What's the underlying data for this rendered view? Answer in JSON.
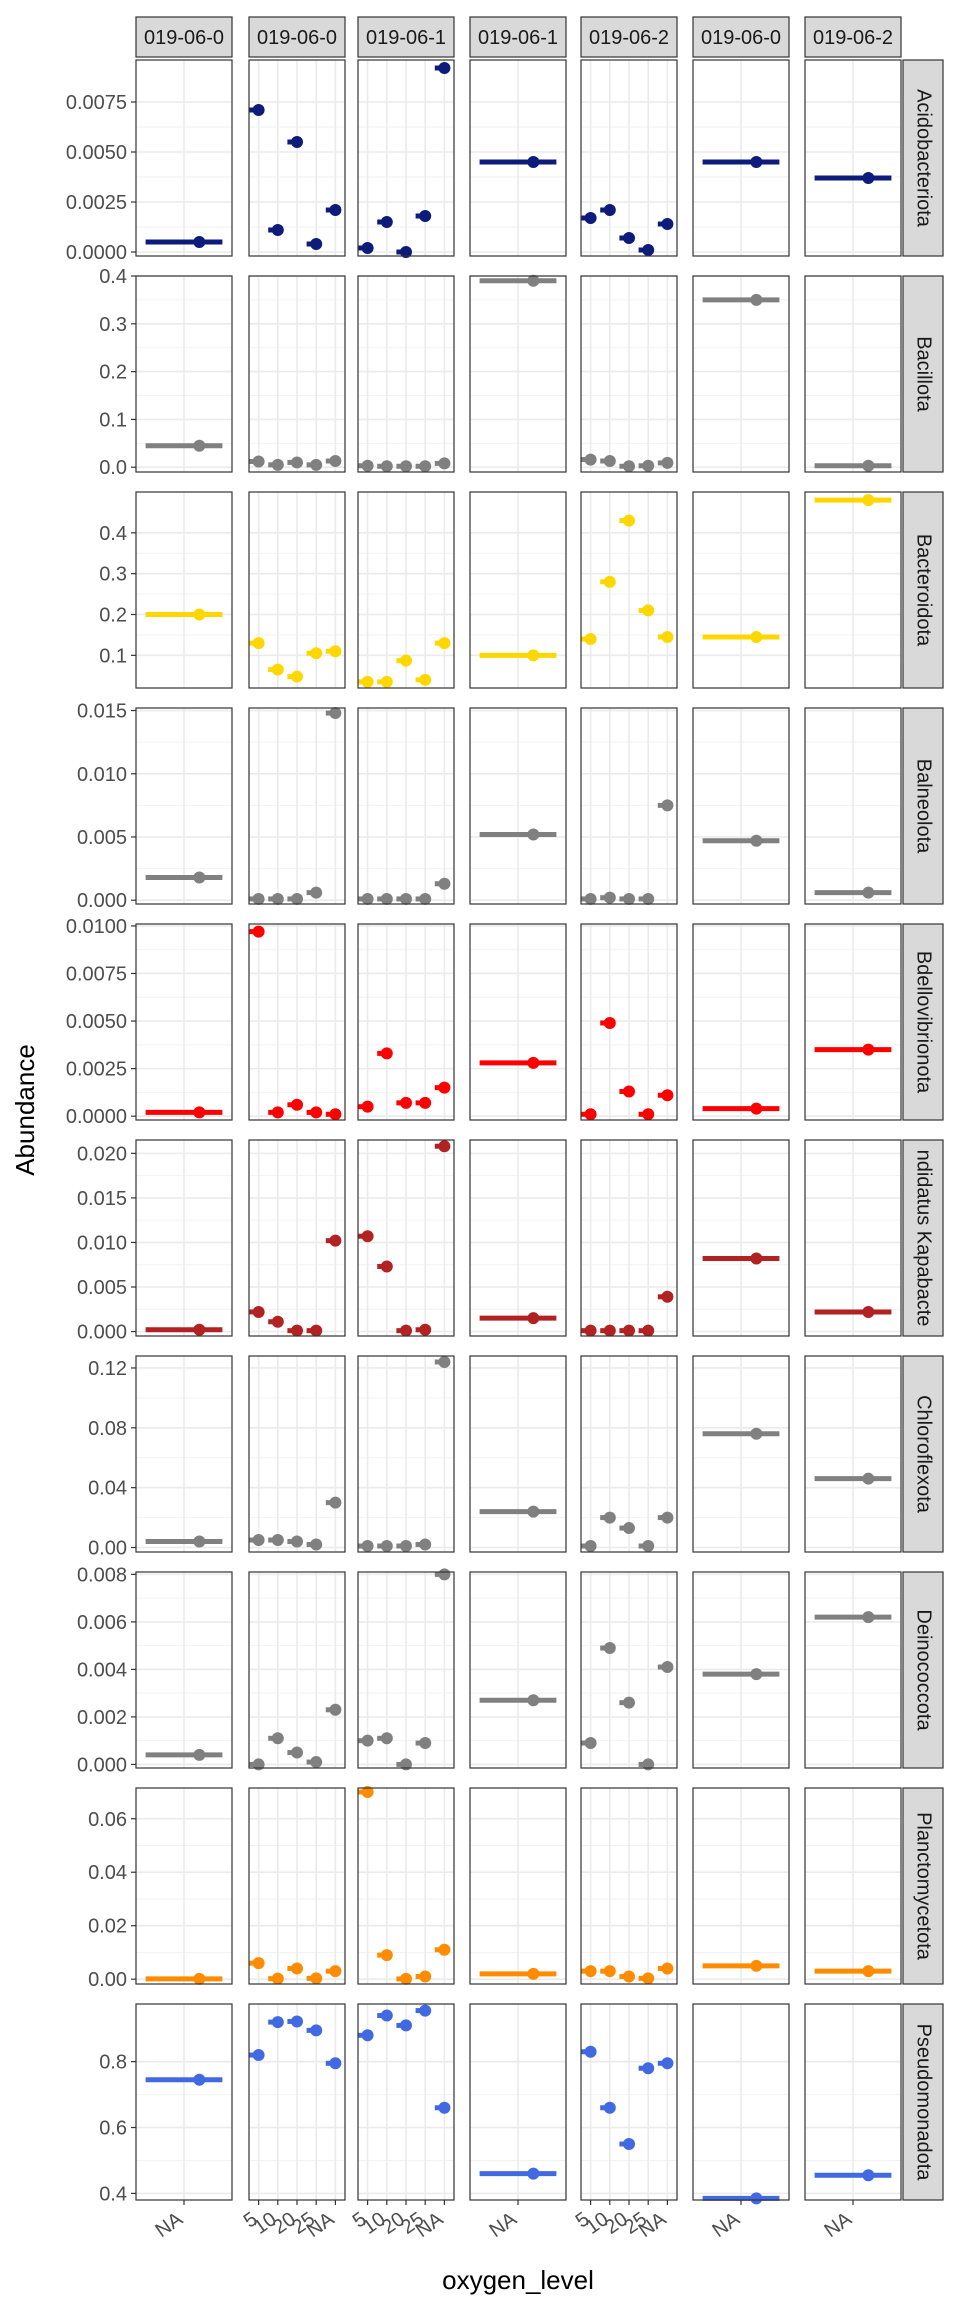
{
  "chart_data": {
    "type": "scatter",
    "xlabel": "oxygen_level",
    "ylabel": "Abundance",
    "columns": [
      "019-06-0",
      "019-06-0",
      "019-06-1",
      "019-06-1",
      "019-06-2",
      "019-06-0",
      "019-06-2"
    ],
    "column_x_ticks": [
      [
        "NA"
      ],
      [
        "5",
        "10",
        "20",
        "25",
        "NA"
      ],
      [
        "5",
        "10",
        "20",
        "25",
        "NA"
      ],
      [
        "NA"
      ],
      [
        "5",
        "10",
        "20",
        "25",
        "NA"
      ],
      [
        "NA"
      ],
      [
        "NA"
      ]
    ],
    "rows": [
      {
        "name": "Acidobacteriota",
        "color": "#0d1b7a",
        "ylim": [
          -0.0002,
          0.0096
        ],
        "ticks": [
          0,
          0.0025,
          0.005,
          0.0075
        ],
        "tick_labels": [
          "0.0000",
          "0.0025",
          "0.0050",
          "0.0075"
        ],
        "panels": [
          [
            0.0005
          ],
          [
            0.0071,
            0.0011,
            0.0055,
            0.0004,
            0.0021
          ],
          [
            0.0002,
            0.0015,
            0.0,
            0.0018,
            0.0092
          ],
          [
            0.0045
          ],
          [
            0.0017,
            0.0021,
            0.0007,
            0.0001,
            0.0014
          ],
          [
            0.0045
          ],
          [
            0.0037
          ]
        ]
      },
      {
        "name": "Bacillota",
        "color": "#808080",
        "ylim": [
          -0.01,
          0.4
        ],
        "ticks": [
          0,
          0.1,
          0.2,
          0.3,
          0.4
        ],
        "tick_labels": [
          "0.0",
          "0.1",
          "0.2",
          "0.3",
          "0.4"
        ],
        "panels": [
          [
            0.045
          ],
          [
            0.012,
            0.005,
            0.01,
            0.005,
            0.013
          ],
          [
            0.003,
            0.002,
            0.002,
            0.002,
            0.008
          ],
          [
            0.39
          ],
          [
            0.016,
            0.013,
            0.002,
            0.003,
            0.009
          ],
          [
            0.35
          ],
          [
            0.003
          ]
        ]
      },
      {
        "name": "Bacteroidota",
        "color": "#ffd700",
        "ylim": [
          0.02,
          0.5
        ],
        "ticks": [
          0.1,
          0.2,
          0.3,
          0.4
        ],
        "tick_labels": [
          "0.1",
          "0.2",
          "0.3",
          "0.4"
        ],
        "panels": [
          [
            0.2
          ],
          [
            0.13,
            0.065,
            0.048,
            0.105,
            0.11
          ],
          [
            0.035,
            0.035,
            0.087,
            0.04,
            0.13
          ],
          [
            0.1
          ],
          [
            0.14,
            0.28,
            0.43,
            0.21,
            0.145
          ],
          [
            0.145
          ],
          [
            0.48
          ]
        ]
      },
      {
        "name": "Balneolota",
        "color": "#808080",
        "ylim": [
          -0.0003,
          0.0152
        ],
        "ticks": [
          0,
          0.005,
          0.01,
          0.015
        ],
        "tick_labels": [
          "0.000",
          "0.005",
          "0.010",
          "0.015"
        ],
        "panels": [
          [
            0.0018
          ],
          [
            0.0001,
            0.0001,
            0.0001,
            0.0006,
            0.0148
          ],
          [
            0.0001,
            0.0001,
            0.0001,
            0.0001,
            0.0013
          ],
          [
            0.0052
          ],
          [
            0.0001,
            0.0002,
            0.0001,
            0.0001,
            0.0075
          ],
          [
            0.0047
          ],
          [
            0.0006
          ]
        ]
      },
      {
        "name": "Bdellovibrionota",
        "color": "#ff0000",
        "ylim": [
          -0.0002,
          0.0101
        ],
        "ticks": [
          0,
          0.0025,
          0.005,
          0.0075,
          0.01
        ],
        "tick_labels": [
          "0.0000",
          "0.0025",
          "0.0050",
          "0.0075",
          "0.0100"
        ],
        "panels": [
          [
            0.0002
          ],
          [
            0.0097,
            0.0002,
            0.0006,
            0.0002,
            0.0001
          ],
          [
            0.0005,
            0.0033,
            0.0007,
            0.0007,
            0.0015
          ],
          [
            0.0028
          ],
          [
            0.0001,
            0.0049,
            0.0013,
            0.0001,
            0.0011
          ],
          [
            0.0004
          ],
          [
            0.0035
          ]
        ]
      },
      {
        "name": "Candidatus Kapabacteria",
        "color": "#b22222",
        "ylim": [
          -0.0005,
          0.0215
        ],
        "ticks": [
          0,
          0.005,
          0.01,
          0.015,
          0.02
        ],
        "tick_labels": [
          "0.000",
          "0.005",
          "0.010",
          "0.015",
          "0.020"
        ],
        "panels": [
          [
            0.0002
          ],
          [
            0.0022,
            0.0011,
            0.0001,
            0.0001,
            0.0102
          ],
          [
            0.0107,
            0.0073,
            0.0001,
            0.0002,
            0.0208
          ],
          [
            0.0015
          ],
          [
            0.0001,
            0.0001,
            0.0001,
            0.0001,
            0.0039
          ],
          [
            0.0082
          ],
          [
            0.0022
          ]
        ]
      },
      {
        "name": "Chloroflexota",
        "color": "#808080",
        "ylim": [
          -0.003,
          0.128
        ],
        "ticks": [
          0,
          0.04,
          0.08,
          0.12
        ],
        "tick_labels": [
          "0.00",
          "0.04",
          "0.08",
          "0.12"
        ],
        "panels": [
          [
            0.004
          ],
          [
            0.005,
            0.005,
            0.004,
            0.002,
            0.03
          ],
          [
            0.001,
            0.001,
            0.001,
            0.002,
            0.124
          ],
          [
            0.024
          ],
          [
            0.001,
            0.02,
            0.013,
            0.001,
            0.02
          ],
          [
            0.076
          ],
          [
            0.046
          ]
        ]
      },
      {
        "name": "Deinococcota",
        "color": "#808080",
        "ylim": [
          -0.00015,
          0.0081
        ],
        "ticks": [
          0,
          0.002,
          0.004,
          0.006,
          0.008
        ],
        "tick_labels": [
          "0.000",
          "0.002",
          "0.004",
          "0.006",
          "0.008"
        ],
        "panels": [
          [
            0.0004
          ],
          [
            0.0,
            0.0011,
            0.0005,
            0.0001,
            0.0023
          ],
          [
            0.001,
            0.0011,
            0.0,
            0.0009,
            0.008
          ],
          [
            0.0027
          ],
          [
            0.0009,
            0.0049,
            0.0026,
            0.0,
            0.0041
          ],
          [
            0.0038
          ],
          [
            0.0062
          ]
        ]
      },
      {
        "name": "Planctomycetota",
        "color": "#ff8c00",
        "ylim": [
          -0.0018,
          0.0715
        ],
        "ticks": [
          0,
          0.02,
          0.04,
          0.06
        ],
        "tick_labels": [
          "0.00",
          "0.02",
          "0.04",
          "0.06"
        ],
        "panels": [
          [
            0.0001
          ],
          [
            0.006,
            0.0002,
            0.004,
            0.0003,
            0.003
          ],
          [
            0.07,
            0.009,
            0.0001,
            0.001,
            0.011
          ],
          [
            0.002
          ],
          [
            0.003,
            0.003,
            0.001,
            0.0003,
            0.004
          ],
          [
            0.005
          ],
          [
            0.003
          ]
        ]
      },
      {
        "name": "Pseudomonadota",
        "color": "#4169e1",
        "ylim": [
          0.38,
          0.975
        ],
        "ticks": [
          0.4,
          0.6,
          0.8
        ],
        "tick_labels": [
          "0.4",
          "0.6",
          "0.8"
        ],
        "panels": [
          [
            0.745
          ],
          [
            0.82,
            0.92,
            0.922,
            0.895,
            0.795
          ],
          [
            0.88,
            0.94,
            0.91,
            0.955,
            0.66
          ],
          [
            0.46
          ],
          [
            0.83,
            0.66,
            0.55,
            0.78,
            0.795
          ],
          [
            0.385
          ],
          [
            0.455
          ]
        ]
      }
    ],
    "strip_text_shown": [
      "019-06-0",
      "019-06-0",
      "019-06-1",
      "019-06-1",
      "019-06-2",
      "019-06-0",
      "019-06-2"
    ],
    "row_strip_text_shown": [
      "Acidobacteriota",
      "Bacillota",
      "Bacteroidota",
      "Balneolota",
      "Bdellovibrionota",
      "ndidatus Kapabacte",
      "Chloroflexota",
      "Deinococcota",
      "Planctomycetota",
      "Pseudomonadota"
    ]
  }
}
